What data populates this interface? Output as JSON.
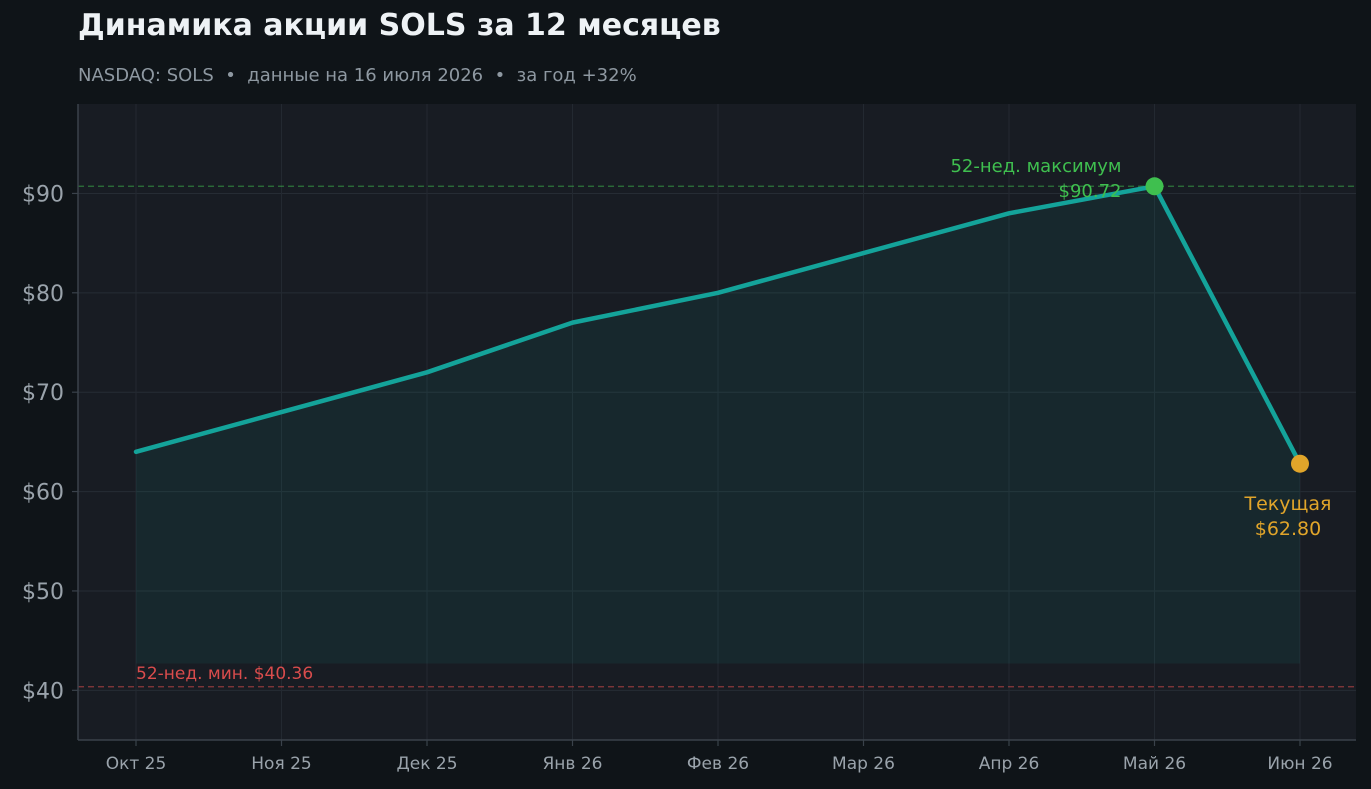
{
  "header": {
    "title": "Динамика акции SOLS за 12 месяцев",
    "subtitle": "NASDAQ: SOLS  •  данные на 16 июля 2026  •  за год +32%"
  },
  "colors": {
    "line": "#14a39a",
    "high": "#3fbf4f",
    "low": "#d94c4c",
    "current": "#e1a52a",
    "plot_bg": "#181c23"
  },
  "chart_data": {
    "type": "line",
    "title": "Динамика акции SOLS за 12 месяцев",
    "subtitle": "NASDAQ: SOLS  •  данные на 16 июля 2026  •  за год +32%",
    "categories": [
      "Окт 25",
      "Ноя 25",
      "Дек 25",
      "Янв 26",
      "Фев 26",
      "Мар 26",
      "Апр 26",
      "Май 26",
      "Июн 26"
    ],
    "series": [
      {
        "values": [
          64,
          68,
          72,
          77,
          80,
          84,
          88,
          90.72,
          62.8
        ]
      }
    ],
    "yticks": [
      40,
      50,
      60,
      70,
      80,
      90
    ],
    "ytick_labels": [
      "$40",
      "$50",
      "$60",
      "$70",
      "$80",
      "$90"
    ],
    "ylim": [
      35,
      99
    ],
    "grid": true,
    "fill_floor": 42.7,
    "annotations": {
      "high": {
        "label": "52-нед. максимум",
        "value_label": "$90.72",
        "value": 90.72,
        "category": "Май 26"
      },
      "low": {
        "label": "52-нед. мин. $40.36",
        "value": 40.36
      },
      "current": {
        "label": "Текущая",
        "value_label": "$62.80",
        "value": 62.8,
        "category": "Июн 26"
      }
    }
  }
}
